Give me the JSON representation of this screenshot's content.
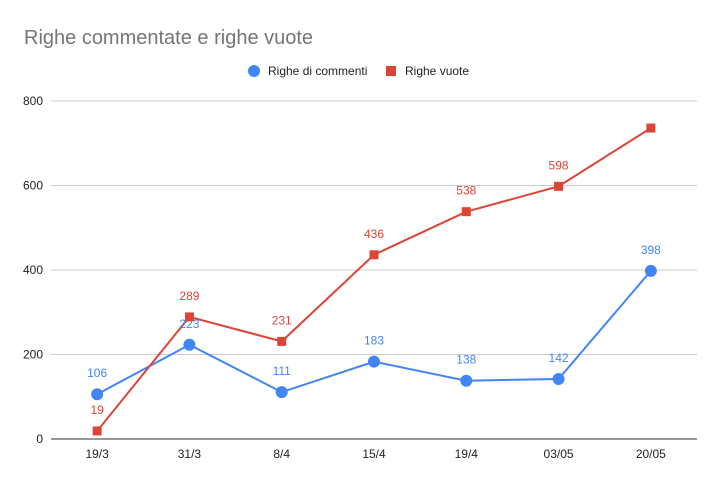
{
  "chart_data": {
    "type": "line",
    "title": "Righe commentate e righe vuote",
    "xlabel": "",
    "ylabel": "",
    "categories": [
      "19/3",
      "31/3",
      "8/4",
      "15/4",
      "19/4",
      "03/05",
      "20/05"
    ],
    "ylim": [
      0,
      800
    ],
    "yticks": [
      0,
      200,
      400,
      600,
      800
    ],
    "grid": true,
    "legend_position": "top-center",
    "series": [
      {
        "name": "Righe di commenti",
        "color": "#4285f4",
        "marker": "circle",
        "values": [
          106,
          223,
          111,
          183,
          138,
          142,
          398
        ],
        "labels": [
          "106",
          "223",
          "111",
          "183",
          "138",
          "142",
          "398"
        ]
      },
      {
        "name": "Righe vuote",
        "color": "#db4437",
        "marker": "square",
        "values": [
          19,
          289,
          231,
          436,
          538,
          598,
          736
        ],
        "labels": [
          "19",
          "289",
          "231",
          "436",
          "538",
          "598",
          ""
        ]
      }
    ]
  }
}
